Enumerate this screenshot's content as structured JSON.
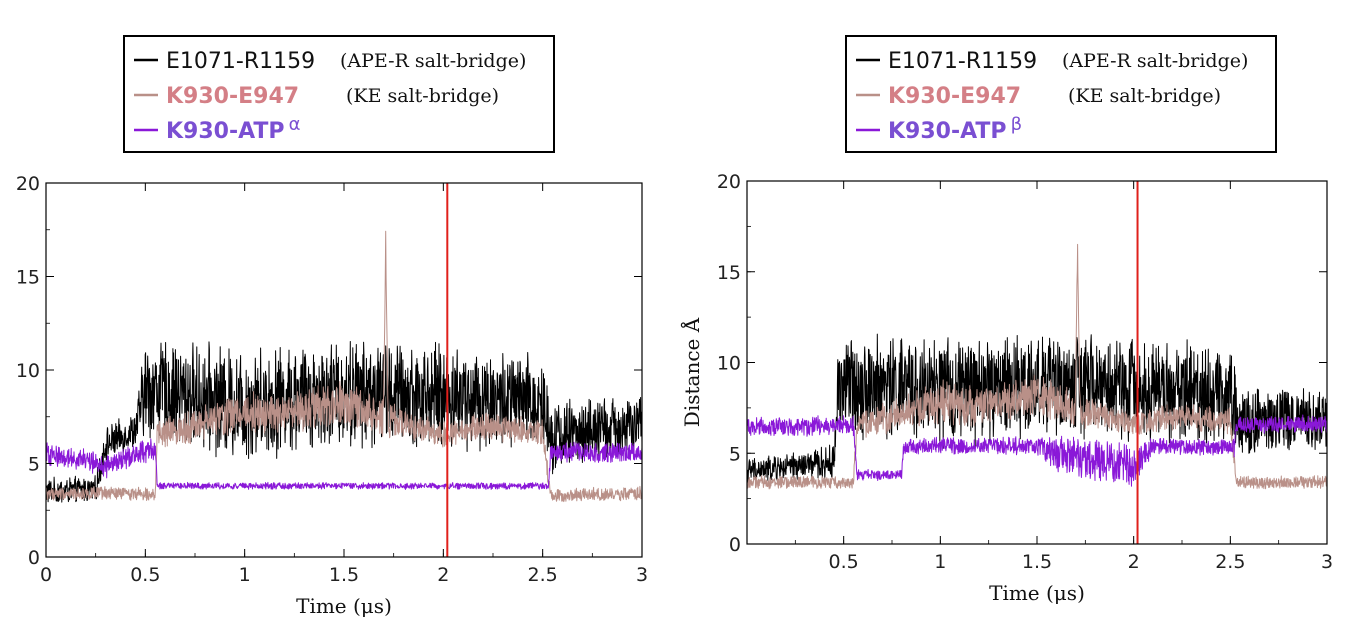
{
  "chart_data": [
    {
      "type": "line",
      "panel": "left",
      "xlabel": "Time (μs)",
      "ylabel": "",
      "xlim": [
        0,
        3
      ],
      "ylim": [
        0,
        20
      ],
      "x_ticks": [
        "0",
        "0.5",
        "1",
        "1.5",
        "2",
        "2.5",
        "3"
      ],
      "y_ticks": [
        "0",
        "5",
        "10",
        "15",
        "20"
      ],
      "marker_line_x": 2.02,
      "marker_line_color": "#e0201b",
      "legend": [
        {
          "label": "E1071-R1159",
          "note": "(APE-R salt-bridge)",
          "color": "#000000"
        },
        {
          "label": "K930-E947",
          "note": "(KE salt-bridge)",
          "color": "#b99088",
          "text_color": "#d47f86"
        },
        {
          "label": "K930-ATP",
          "superscript": "α",
          "note": "",
          "color": "#8a18d8",
          "text_color": "#7a4fd2"
        }
      ],
      "series": [
        {
          "name": "E1071-R1159",
          "color": "#000000",
          "x": [
            0.0,
            0.25,
            0.3,
            0.45,
            0.5,
            0.8,
            1.0,
            1.5,
            2.0,
            2.5,
            2.55,
            3.0
          ],
          "values": [
            3.5,
            3.6,
            6.0,
            6.8,
            9.0,
            8.5,
            8.2,
            8.8,
            8.6,
            8.2,
            6.5,
            7.0
          ],
          "noise": [
            0.6,
            0.6,
            0.8,
            0.8,
            2.2,
            2.4,
            2.5,
            2.4,
            2.3,
            2.2,
            1.6,
            1.4
          ]
        },
        {
          "name": "K930-E947",
          "color": "#b99088",
          "x": [
            0.0,
            0.55,
            0.56,
            0.8,
            1.0,
            1.2,
            1.5,
            1.65,
            1.9,
            2.0,
            2.2,
            2.5,
            2.54,
            3.0
          ],
          "values": [
            3.4,
            3.4,
            6.5,
            7.2,
            7.8,
            7.6,
            8.2,
            7.6,
            6.8,
            6.5,
            7.0,
            6.6,
            3.3,
            3.4
          ],
          "noise": [
            0.3,
            0.3,
            0.6,
            0.8,
            1.0,
            0.9,
            1.0,
            0.9,
            0.6,
            0.6,
            0.6,
            0.6,
            0.3,
            0.3
          ],
          "spike": {
            "x": 1.71,
            "y": 17.5
          }
        },
        {
          "name": "K930-ATPα",
          "color": "#8a18d8",
          "x": [
            0.0,
            0.2,
            0.3,
            0.45,
            0.55,
            0.56,
            1.0,
            2.0,
            2.53,
            2.54,
            3.0
          ],
          "values": [
            5.5,
            5.2,
            4.8,
            5.5,
            5.8,
            3.8,
            3.8,
            3.8,
            3.8,
            5.6,
            5.6
          ],
          "noise": [
            0.5,
            0.5,
            0.5,
            0.5,
            0.5,
            0.15,
            0.15,
            0.15,
            0.15,
            0.45,
            0.45
          ]
        }
      ]
    },
    {
      "type": "line",
      "panel": "right",
      "xlabel": "Time (μs)",
      "ylabel": "Distance Å",
      "xlim": [
        0,
        3
      ],
      "ylim": [
        0,
        20
      ],
      "x_ticks": [
        "0.5",
        "1",
        "1.5",
        "2",
        "2.5",
        "3"
      ],
      "y_ticks": [
        "0",
        "5",
        "10",
        "15",
        "20"
      ],
      "marker_line_x": 2.02,
      "marker_line_color": "#e0201b",
      "legend": [
        {
          "label": "E1071-R1159",
          "note": "(APE-R salt-bridge)",
          "color": "#000000"
        },
        {
          "label": "K930-E947",
          "note": "(KE salt-bridge)",
          "color": "#b99088",
          "text_color": "#d47f86"
        },
        {
          "label": "K930-ATP",
          "superscript": "β",
          "note": "",
          "color": "#8a18d8",
          "text_color": "#7a4fd2"
        }
      ],
      "series": [
        {
          "name": "E1071-R1159",
          "color": "#000000",
          "x": [
            0.0,
            0.2,
            0.45,
            0.47,
            0.8,
            1.0,
            1.5,
            2.0,
            2.5,
            2.55,
            3.0
          ],
          "values": [
            4.0,
            4.2,
            4.5,
            8.8,
            8.6,
            8.3,
            8.8,
            8.6,
            8.3,
            6.8,
            7.0
          ],
          "noise": [
            0.6,
            0.6,
            0.8,
            2.3,
            2.4,
            2.5,
            2.4,
            2.3,
            2.3,
            1.6,
            1.5
          ]
        },
        {
          "name": "K930-E947",
          "color": "#b99088",
          "x": [
            0.0,
            0.55,
            0.57,
            0.8,
            1.0,
            1.2,
            1.5,
            1.65,
            1.9,
            2.0,
            2.2,
            2.5,
            2.53,
            3.0
          ],
          "values": [
            3.4,
            3.4,
            6.5,
            7.2,
            7.8,
            7.6,
            8.2,
            7.6,
            6.8,
            6.6,
            7.0,
            6.8,
            3.4,
            3.4
          ],
          "noise": [
            0.3,
            0.3,
            0.6,
            0.8,
            1.0,
            0.9,
            1.0,
            0.9,
            0.6,
            0.6,
            0.6,
            0.6,
            0.3,
            0.3
          ],
          "spike": {
            "x": 1.71,
            "y": 17.5
          }
        },
        {
          "name": "K930-ATPβ",
          "color": "#8a18d8",
          "x": [
            0.0,
            0.55,
            0.57,
            0.8,
            0.81,
            1.5,
            1.6,
            1.8,
            2.0,
            2.1,
            2.52,
            2.53,
            3.0
          ],
          "values": [
            6.5,
            6.5,
            3.8,
            3.8,
            5.4,
            5.4,
            5.0,
            4.6,
            4.3,
            5.4,
            5.3,
            6.6,
            6.6
          ],
          "noise": [
            0.45,
            0.45,
            0.25,
            0.25,
            0.4,
            0.4,
            0.9,
            1.0,
            1.0,
            0.4,
            0.4,
            0.4,
            0.4
          ]
        }
      ]
    }
  ]
}
